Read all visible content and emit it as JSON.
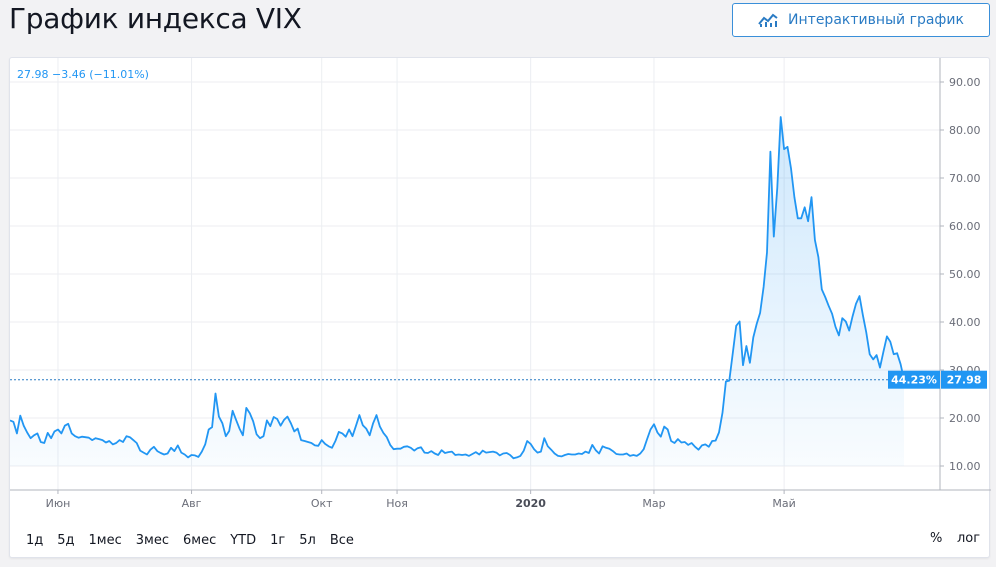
{
  "page": {
    "title": "График индекса VIX"
  },
  "header": {
    "interactive_label": "Интерактивный график"
  },
  "legend": {
    "last_value": "27.98",
    "change": "−3.46 (−11.01%)"
  },
  "colors": {
    "line": "#2196f3",
    "accent": "#2a7bc4",
    "grid": "#eceef2"
  },
  "ranges": [
    "1д",
    "5д",
    "1мес",
    "3мес",
    "6мес",
    "YTD",
    "1г",
    "5л",
    "Все"
  ],
  "options": {
    "percent": "%",
    "log": "лог"
  },
  "chart_data": {
    "type": "area",
    "title": "",
    "ylim": [
      5,
      95
    ],
    "yticks": [
      "10.00",
      "20.00",
      "30.00",
      "40.00",
      "50.00",
      "60.00",
      "70.00",
      "80.00",
      "90.00"
    ],
    "ytick_values": [
      10,
      20,
      30,
      40,
      50,
      60,
      70,
      80,
      90
    ],
    "xlabels": [
      {
        "label": "Июн",
        "bold": false,
        "index": 14
      },
      {
        "label": "Авг",
        "bold": false,
        "index": 53
      },
      {
        "label": "Окт",
        "bold": false,
        "index": 91
      },
      {
        "label": "Ноя",
        "bold": false,
        "index": 113
      },
      {
        "label": "2020",
        "bold": true,
        "index": 152
      },
      {
        "label": "Мар",
        "bold": false,
        "index": 188
      },
      {
        "label": "Май",
        "bold": false,
        "index": 226
      }
    ],
    "last_price_label": "27.98",
    "last_percent_label": "44.23%",
    "grid": true,
    "series": [
      {
        "values": [
          19.5,
          19.2,
          16.8,
          20.5,
          18.4,
          17.0,
          15.8,
          16.4,
          16.8,
          15.0,
          14.8,
          16.9,
          15.8,
          17.2,
          17.6,
          16.8,
          18.4,
          18.8,
          16.8,
          16.2,
          15.9,
          16.1,
          16.0,
          15.9,
          15.4,
          15.8,
          15.6,
          15.4,
          14.9,
          15.2,
          14.5,
          14.8,
          15.4,
          15.0,
          16.2,
          16.0,
          15.4,
          14.8,
          13.2,
          12.8,
          12.4,
          13.4,
          14.0,
          13.1,
          12.7,
          12.4,
          12.6,
          13.8,
          13.1,
          14.3,
          12.8,
          12.4,
          11.8,
          12.3,
          12.2,
          11.9,
          13.0,
          14.5,
          17.6,
          18.1,
          25.1,
          20.3,
          18.9,
          16.2,
          17.3,
          21.5,
          19.6,
          17.8,
          16.4,
          22.1,
          21.0,
          19.3,
          16.6,
          15.8,
          16.2,
          19.5,
          18.3,
          20.2,
          19.8,
          18.4,
          19.6,
          20.3,
          18.9,
          17.2,
          17.8,
          15.4,
          15.2,
          15.0,
          14.8,
          14.3,
          14.2,
          15.4,
          14.6,
          14.1,
          13.8,
          15.2,
          17.1,
          16.8,
          16.1,
          17.6,
          16.2,
          18.4,
          20.6,
          18.5,
          17.8,
          16.4,
          18.9,
          20.6,
          18.2,
          16.9,
          16.0,
          14.4,
          13.5,
          13.6,
          13.6,
          14.0,
          14.1,
          13.8,
          13.2,
          13.7,
          13.9,
          12.8,
          12.7,
          13.1,
          12.6,
          12.3,
          13.3,
          12.7,
          12.9,
          13.0,
          12.3,
          12.4,
          12.3,
          12.4,
          12.1,
          12.5,
          12.9,
          12.4,
          13.2,
          12.8,
          12.9,
          13.0,
          12.8,
          12.2,
          12.6,
          12.7,
          12.3,
          11.6,
          11.8,
          12.1,
          13.2,
          15.2,
          14.6,
          13.5,
          12.8,
          13.0,
          15.8,
          14.1,
          13.4,
          12.6,
          12.1,
          12.0,
          12.3,
          12.5,
          12.4,
          12.4,
          12.6,
          12.5,
          13.0,
          12.7,
          14.4,
          13.3,
          12.6,
          14.1,
          13.8,
          13.6,
          13.1,
          12.5,
          12.4,
          12.4,
          12.6,
          12.1,
          12.3,
          12.1,
          12.6,
          13.5,
          15.6,
          17.6,
          18.7,
          17.0,
          16.1,
          18.2,
          17.6,
          15.2,
          14.8,
          15.6,
          14.9,
          15.0,
          14.4,
          14.8,
          14.0,
          13.4,
          14.3,
          14.5,
          14.0,
          15.2,
          15.3,
          17.0,
          21.1,
          27.6,
          27.8,
          33.4,
          39.2,
          40.1,
          31.0,
          35.0,
          31.5,
          36.8,
          39.6,
          41.9,
          47.3,
          54.5,
          75.5,
          57.8,
          68.0,
          82.7,
          76.0,
          76.5,
          72.0,
          66.0,
          61.6,
          61.6,
          63.9,
          61.0,
          66.0,
          57.1,
          53.5,
          46.8,
          45.2,
          43.4,
          41.7,
          39.0,
          37.2,
          40.8,
          40.1,
          38.2,
          41.2,
          43.8,
          45.4,
          41.4,
          37.8,
          33.3,
          32.2,
          33.1,
          30.5,
          33.8,
          37.0,
          35.9,
          33.3,
          33.5,
          31.2,
          27.98
        ]
      }
    ]
  }
}
